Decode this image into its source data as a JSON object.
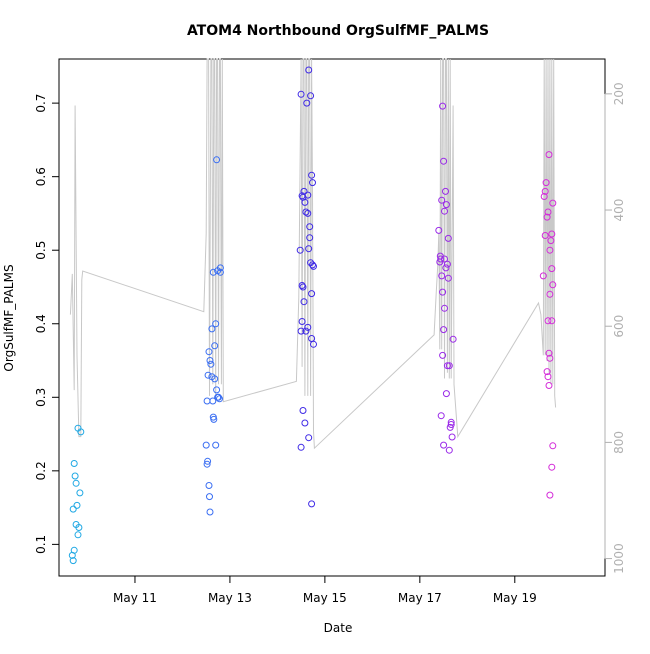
{
  "chart_data": {
    "type": "scatter",
    "title": "ATOM4 Northbound OrgSulfMF_PALMS",
    "xlabel": "Date",
    "ylabel": "OrgSulfMF_PALMS",
    "x_ticks": [
      "May 11",
      "May 13",
      "May 15",
      "May 17",
      "May 19"
    ],
    "x_tick_days": [
      11,
      13,
      15,
      17,
      19
    ],
    "xlim_days": [
      9.4,
      20.9
    ],
    "ylim": [
      0.057,
      0.76
    ],
    "y_ticks": [
      0.1,
      0.2,
      0.3,
      0.4,
      0.5,
      0.6,
      0.7
    ],
    "y2_ticks": [
      200,
      400,
      600,
      800,
      1000
    ],
    "y2lim": [
      1030,
      140
    ],
    "y2_reversed": true,
    "grid": false,
    "secondary_series_color": "#c8c8c8",
    "series": [
      {
        "color": "#1fa8e4",
        "points": [
          [
            9.68,
            0.085
          ],
          [
            9.7,
            0.078
          ],
          [
            9.72,
            0.092
          ],
          [
            9.7,
            0.148
          ],
          [
            9.72,
            0.21
          ],
          [
            9.74,
            0.193
          ],
          [
            9.76,
            0.183
          ],
          [
            9.76,
            0.127
          ],
          [
            9.78,
            0.153
          ],
          [
            9.8,
            0.113
          ],
          [
            9.82,
            0.123
          ],
          [
            9.84,
            0.17
          ],
          [
            9.8,
            0.258
          ],
          [
            9.86,
            0.253
          ]
        ]
      },
      {
        "color": "#3a6ef2",
        "points": [
          [
            12.5,
            0.235
          ],
          [
            12.52,
            0.209
          ],
          [
            12.53,
            0.213
          ],
          [
            12.56,
            0.18
          ],
          [
            12.57,
            0.165
          ],
          [
            12.58,
            0.144
          ],
          [
            12.52,
            0.295
          ],
          [
            12.54,
            0.33
          ],
          [
            12.56,
            0.362
          ],
          [
            12.58,
            0.35
          ],
          [
            12.6,
            0.345
          ],
          [
            12.62,
            0.393
          ],
          [
            12.62,
            0.328
          ],
          [
            12.64,
            0.295
          ],
          [
            12.65,
            0.273
          ],
          [
            12.66,
            0.27
          ],
          [
            12.68,
            0.37
          ],
          [
            12.7,
            0.4
          ],
          [
            12.68,
            0.325
          ],
          [
            12.7,
            0.235
          ],
          [
            12.72,
            0.31
          ],
          [
            12.74,
            0.3
          ],
          [
            12.76,
            0.3
          ],
          [
            12.78,
            0.298
          ],
          [
            12.65,
            0.47
          ],
          [
            12.72,
            0.623
          ],
          [
            12.74,
            0.472
          ],
          [
            12.8,
            0.476
          ],
          [
            12.8,
            0.47
          ]
        ]
      },
      {
        "color": "#3f2ae6",
        "points": [
          [
            14.48,
            0.5
          ],
          [
            14.5,
            0.712
          ],
          [
            14.52,
            0.574
          ],
          [
            14.54,
            0.572
          ],
          [
            14.56,
            0.58
          ],
          [
            14.58,
            0.565
          ],
          [
            14.6,
            0.552
          ],
          [
            14.62,
            0.7
          ],
          [
            14.64,
            0.575
          ],
          [
            14.66,
            0.745
          ],
          [
            14.64,
            0.55
          ],
          [
            14.68,
            0.532
          ],
          [
            14.7,
            0.71
          ],
          [
            14.72,
            0.602
          ],
          [
            14.74,
            0.592
          ],
          [
            14.74,
            0.48
          ],
          [
            14.76,
            0.478
          ],
          [
            14.68,
            0.517
          ],
          [
            14.66,
            0.502
          ],
          [
            14.7,
            0.483
          ],
          [
            14.52,
            0.452
          ],
          [
            14.54,
            0.45
          ],
          [
            14.52,
            0.403
          ],
          [
            14.56,
            0.43
          ],
          [
            14.6,
            0.39
          ],
          [
            14.5,
            0.39
          ],
          [
            14.64,
            0.395
          ],
          [
            14.72,
            0.38
          ],
          [
            14.76,
            0.372
          ],
          [
            14.72,
            0.441
          ],
          [
            14.54,
            0.282
          ],
          [
            14.58,
            0.265
          ],
          [
            14.66,
            0.245
          ],
          [
            14.5,
            0.232
          ],
          [
            14.72,
            0.155
          ]
        ]
      },
      {
        "color": "#9a2ae8",
        "points": [
          [
            17.4,
            0.527
          ],
          [
            17.42,
            0.484
          ],
          [
            17.43,
            0.492
          ],
          [
            17.44,
            0.488
          ],
          [
            17.46,
            0.568
          ],
          [
            17.48,
            0.696
          ],
          [
            17.5,
            0.621
          ],
          [
            17.52,
            0.553
          ],
          [
            17.54,
            0.58
          ],
          [
            17.56,
            0.562
          ],
          [
            17.52,
            0.488
          ],
          [
            17.55,
            0.476
          ],
          [
            17.58,
            0.481
          ],
          [
            17.6,
            0.516
          ],
          [
            17.6,
            0.462
          ],
          [
            17.46,
            0.465
          ],
          [
            17.48,
            0.443
          ],
          [
            17.5,
            0.392
          ],
          [
            17.52,
            0.421
          ],
          [
            17.48,
            0.357
          ],
          [
            17.58,
            0.343
          ],
          [
            17.62,
            0.343
          ],
          [
            17.56,
            0.305
          ],
          [
            17.45,
            0.275
          ],
          [
            17.5,
            0.235
          ],
          [
            17.62,
            0.228
          ],
          [
            17.64,
            0.259
          ],
          [
            17.66,
            0.266
          ],
          [
            17.68,
            0.246
          ],
          [
            17.7,
            0.379
          ],
          [
            17.66,
            0.263
          ]
        ]
      },
      {
        "color": "#d42cd9",
        "points": [
          [
            19.6,
            0.465
          ],
          [
            19.62,
            0.573
          ],
          [
            19.64,
            0.58
          ],
          [
            19.66,
            0.592
          ],
          [
            19.64,
            0.52
          ],
          [
            19.68,
            0.545
          ],
          [
            19.7,
            0.552
          ],
          [
            19.72,
            0.63
          ],
          [
            19.74,
            0.5
          ],
          [
            19.76,
            0.513
          ],
          [
            19.78,
            0.522
          ],
          [
            19.8,
            0.564
          ],
          [
            19.78,
            0.475
          ],
          [
            19.8,
            0.453
          ],
          [
            19.74,
            0.44
          ],
          [
            19.7,
            0.404
          ],
          [
            19.78,
            0.404
          ],
          [
            19.72,
            0.36
          ],
          [
            19.68,
            0.335
          ],
          [
            19.7,
            0.328
          ],
          [
            19.74,
            0.353
          ],
          [
            19.72,
            0.316
          ],
          [
            19.8,
            0.234
          ],
          [
            19.78,
            0.205
          ],
          [
            19.74,
            0.167
          ]
        ]
      }
    ],
    "altitude_profile": [
      [
        9.64,
        580
      ],
      [
        9.68,
        510
      ],
      [
        9.72,
        710
      ],
      [
        9.74,
        220
      ],
      [
        9.78,
        650
      ],
      [
        9.82,
        790
      ],
      [
        9.86,
        790
      ],
      [
        9.88,
        520
      ],
      [
        9.9,
        505
      ],
      [
        12.45,
        575
      ],
      [
        12.5,
        440
      ],
      [
        12.52,
        140
      ],
      [
        12.55,
        140
      ],
      [
        12.57,
        720
      ],
      [
        12.6,
        140
      ],
      [
        12.62,
        140
      ],
      [
        12.64,
        700
      ],
      [
        12.66,
        140
      ],
      [
        12.68,
        140
      ],
      [
        12.7,
        730
      ],
      [
        12.72,
        140
      ],
      [
        12.74,
        140
      ],
      [
        12.76,
        700
      ],
      [
        12.78,
        140
      ],
      [
        12.8,
        140
      ],
      [
        12.82,
        700
      ],
      [
        12.84,
        140
      ],
      [
        12.86,
        730
      ],
      [
        14.4,
        695
      ],
      [
        14.45,
        550
      ],
      [
        14.5,
        140
      ],
      [
        14.52,
        670
      ],
      [
        14.54,
        140
      ],
      [
        14.56,
        140
      ],
      [
        14.58,
        720
      ],
      [
        14.6,
        140
      ],
      [
        14.62,
        140
      ],
      [
        14.64,
        720
      ],
      [
        14.66,
        140
      ],
      [
        14.68,
        140
      ],
      [
        14.7,
        720
      ],
      [
        14.72,
        140
      ],
      [
        14.74,
        370
      ],
      [
        14.76,
        780
      ],
      [
        14.78,
        810
      ],
      [
        17.3,
        615
      ],
      [
        17.34,
        550
      ],
      [
        17.38,
        490
      ],
      [
        17.4,
        440
      ],
      [
        17.42,
        640
      ],
      [
        17.44,
        140
      ],
      [
        17.46,
        640
      ],
      [
        17.48,
        140
      ],
      [
        17.5,
        140
      ],
      [
        17.52,
        690
      ],
      [
        17.54,
        140
      ],
      [
        17.56,
        140
      ],
      [
        17.58,
        680
      ],
      [
        17.6,
        140
      ],
      [
        17.62,
        690
      ],
      [
        17.64,
        140
      ],
      [
        17.66,
        690
      ],
      [
        17.7,
        220
      ],
      [
        17.72,
        700
      ],
      [
        17.8,
        790
      ],
      [
        19.5,
        560
      ],
      [
        19.55,
        580
      ],
      [
        19.6,
        650
      ],
      [
        19.62,
        140
      ],
      [
        19.64,
        650
      ],
      [
        19.66,
        140
      ],
      [
        19.68,
        660
      ],
      [
        19.7,
        140
      ],
      [
        19.72,
        680
      ],
      [
        19.74,
        140
      ],
      [
        19.76,
        700
      ],
      [
        19.78,
        140
      ],
      [
        19.8,
        700
      ],
      [
        19.82,
        140
      ],
      [
        19.84,
        720
      ],
      [
        19.86,
        740
      ]
    ]
  }
}
